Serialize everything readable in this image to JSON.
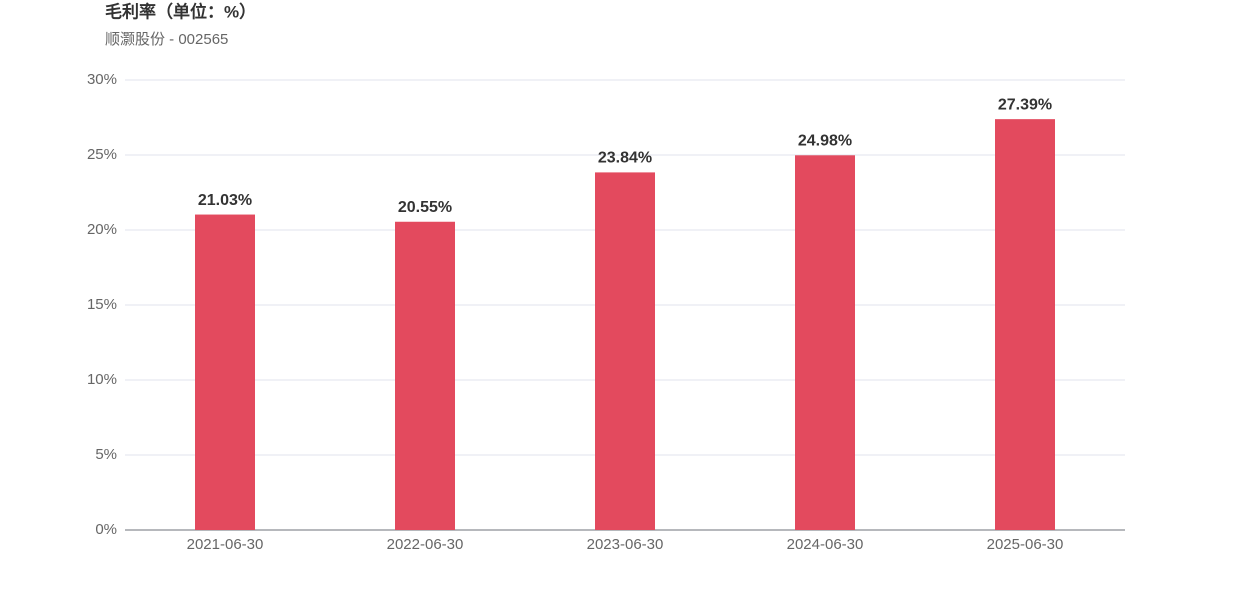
{
  "chart_data": {
    "type": "bar",
    "title": "毛利率（单位：%）",
    "subtitle": "顺灏股份 - 002565",
    "categories": [
      "2021-06-30",
      "2022-06-30",
      "2023-06-30",
      "2024-06-30",
      "2025-06-30"
    ],
    "values": [
      21.03,
      20.55,
      23.84,
      24.98,
      27.39
    ],
    "value_labels": [
      "21.03%",
      "20.55%",
      "23.84%",
      "24.98%",
      "27.39%"
    ],
    "color": "#e34a5e",
    "ylim": [
      0,
      30
    ],
    "yticks": [
      {
        "value": 0,
        "label": "0%"
      },
      {
        "value": 5,
        "label": "5%"
      },
      {
        "value": 10,
        "label": "10%"
      },
      {
        "value": 15,
        "label": "15%"
      },
      {
        "value": 20,
        "label": "20%"
      },
      {
        "value": 25,
        "label": "25%"
      },
      {
        "value": 30,
        "label": "30%"
      }
    ],
    "grid": true
  }
}
